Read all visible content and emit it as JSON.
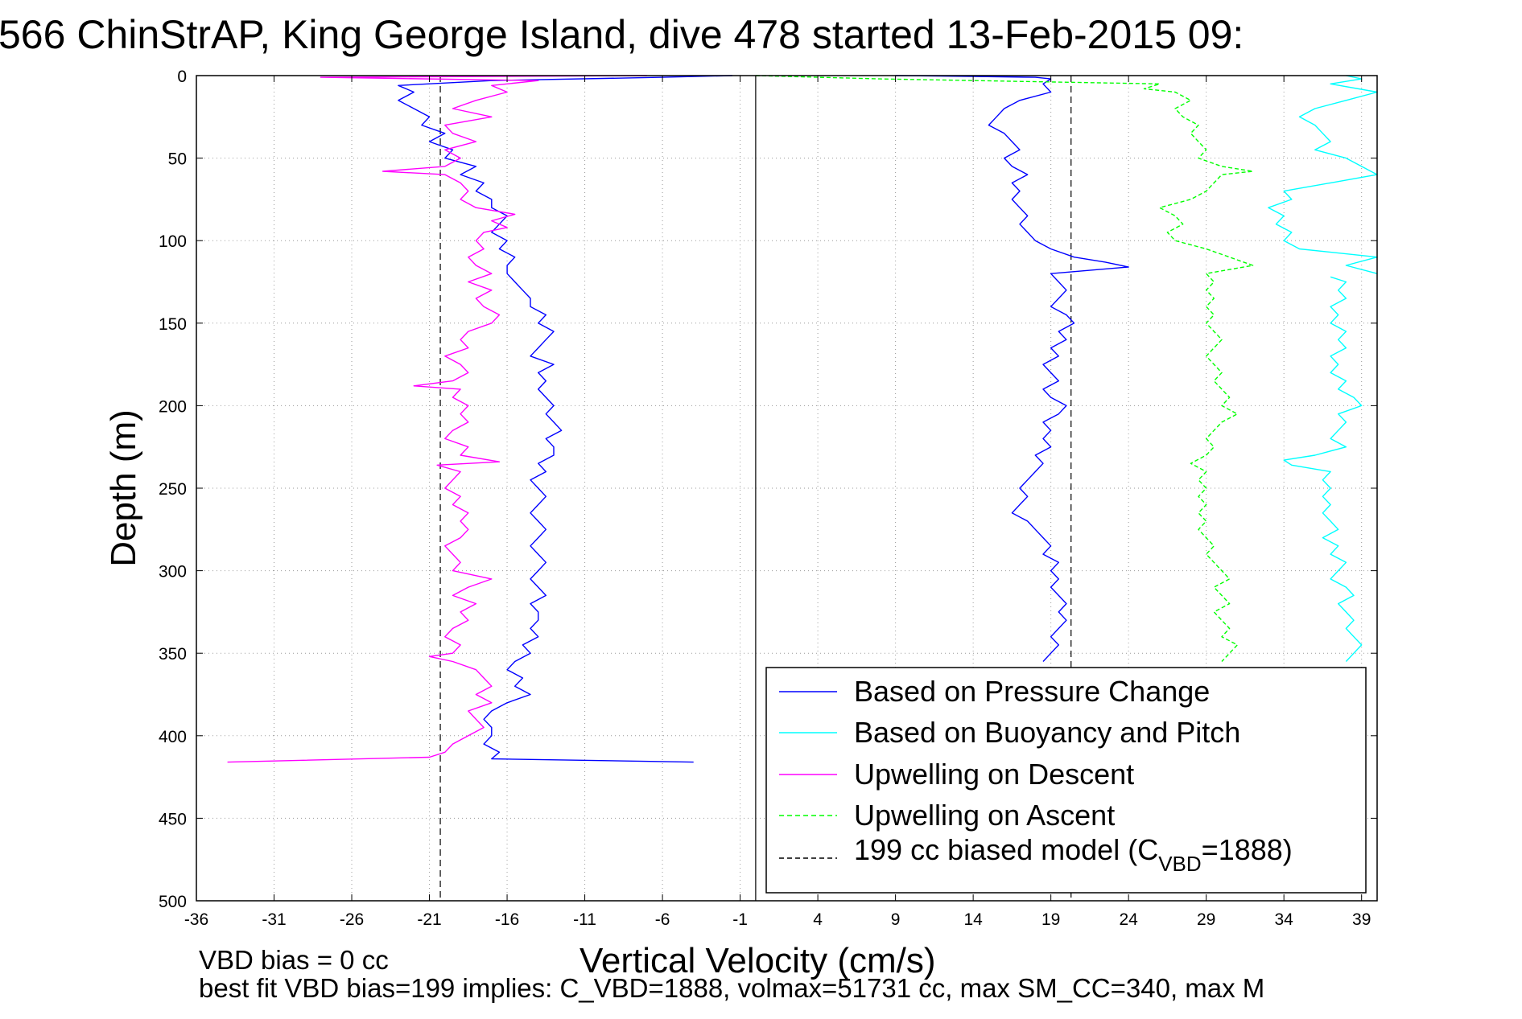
{
  "chart_data": {
    "type": "line",
    "title": "566 ChinStrAP, King George Island, dive 478 started 13-Feb-2015 09:",
    "xlabel": "Vertical Velocity (cm/s)",
    "ylabel": "Depth (m)",
    "xlim": [
      -36,
      40
    ],
    "ylim": [
      500,
      0
    ],
    "x_ticks": [
      "-36",
      "-31",
      "-26",
      "-21",
      "-16",
      "-11",
      "-6",
      "-1",
      "4",
      "9",
      "14",
      "19",
      "24",
      "29",
      "34",
      "39"
    ],
    "y_ticks": [
      "0",
      "50",
      "100",
      "150",
      "200",
      "250",
      "300",
      "350",
      "400",
      "450",
      "500"
    ],
    "grid": true,
    "legend_position": "bottom-right",
    "footer_lines": [
      "VBD bias = 0 cc",
      "best fit VBD bias=199 implies: C_VBD=1888, volmax=51731 cc, max SM_CC=340, max M"
    ],
    "vertical_lines": [
      {
        "x": -20.3,
        "style": "dashed",
        "color": "#000000"
      },
      {
        "x": 20.3,
        "style": "dashed",
        "color": "#000000"
      },
      {
        "x": 0,
        "style": "solid",
        "color": "#000000"
      }
    ],
    "series": [
      {
        "name": "Based on Pressure Change",
        "color": "#0000ff",
        "style": "solid",
        "segments": [
          {
            "depth": [
              0,
              1,
              3,
              6,
              10,
              15,
              20,
              25,
              30,
              35,
              40,
              45,
              50,
              55,
              60,
              65,
              70,
              75,
              80,
              85,
              90,
              95,
              100,
              105,
              110,
              115,
              120,
              125,
              130,
              135,
              140,
              145,
              150,
              155,
              160,
              165,
              170,
              175,
              180,
              185,
              190,
              195,
              200,
              205,
              210,
              215,
              220,
              225,
              230,
              235,
              240,
              245,
              250,
              255,
              260,
              265,
              270,
              275,
              280,
              285,
              290,
              295,
              300,
              305,
              310,
              315,
              320,
              325,
              330,
              335,
              340,
              345,
              350,
              355,
              360,
              365,
              370,
              375,
              380,
              385,
              390,
              395,
              400,
              405,
              410,
              414,
              416
            ],
            "velocity": [
              -1.5,
              -6,
              -17,
              -23,
              -22,
              -23,
              -22,
              -21,
              -21.5,
              -20,
              -21,
              -19.5,
              -20,
              -18,
              -19,
              -17.5,
              -18,
              -17,
              -17,
              -16,
              -16.5,
              -17,
              -16,
              -16.5,
              -15.5,
              -16,
              -16,
              -15.5,
              -15,
              -14.5,
              -14.5,
              -13.5,
              -14,
              -13,
              -13.5,
              -14,
              -14.5,
              -13,
              -14,
              -13.5,
              -14,
              -13.5,
              -13,
              -13.5,
              -13,
              -12.5,
              -13.5,
              -13,
              -13,
              -14,
              -13.5,
              -14.5,
              -14,
              -13.5,
              -14,
              -14.5,
              -14,
              -13.5,
              -14,
              -14.5,
              -14,
              -13.5,
              -14,
              -14.5,
              -14,
              -13.5,
              -14.5,
              -14,
              -14,
              -14.5,
              -14,
              -15,
              -14.5,
              -15.5,
              -16,
              -15,
              -15.5,
              -14.5,
              -16,
              -17,
              -17.5,
              -17,
              -17,
              -17.5,
              -16.5,
              -17,
              -4
            ]
          },
          {
            "depth": [
              0,
              0.5,
              1,
              2
            ],
            "velocity": [
              9,
              14,
              18,
              19
            ]
          },
          {
            "depth": [
              2,
              5,
              10,
              15,
              20,
              25,
              30,
              35,
              40,
              45,
              50,
              55,
              60,
              65,
              70,
              75,
              80,
              85,
              90,
              95,
              100,
              105,
              110,
              113,
              116,
              120,
              125,
              130,
              135,
              140,
              145,
              150,
              155,
              160,
              165,
              170,
              175,
              180,
              185,
              190,
              195,
              200,
              205,
              210,
              215,
              220,
              225,
              230,
              235,
              240,
              245,
              250,
              255,
              260,
              265,
              270,
              275,
              280,
              285,
              290,
              295,
              300,
              305,
              310,
              315,
              320,
              325,
              330,
              335,
              340,
              345,
              350,
              355
            ],
            "velocity": [
              19,
              18.5,
              19,
              17,
              16,
              15.5,
              15,
              16,
              16.5,
              17,
              16,
              16.5,
              17.5,
              16.5,
              17,
              16.5,
              17,
              17.5,
              17,
              17.5,
              18,
              19,
              20.5,
              22.5,
              24,
              19,
              19.5,
              20,
              19.5,
              19,
              20,
              20.5,
              19.5,
              20,
              19,
              19.5,
              18.5,
              19,
              19.5,
              18.5,
              19,
              20,
              19.5,
              18.5,
              19,
              18.5,
              19,
              18,
              18.5,
              18,
              17.5,
              17,
              17.5,
              17,
              16.5,
              17.5,
              18,
              18.5,
              19,
              18.5,
              19.5,
              19,
              19.5,
              19,
              19.5,
              20,
              19.5,
              20,
              19.5,
              19,
              19.5,
              19,
              18.5
            ]
          }
        ]
      },
      {
        "name": "Based on Buoyancy and Pitch",
        "color": "#00ffff",
        "style": "solid",
        "segments": [
          {
            "depth": [
              0,
              2,
              5,
              10,
              15,
              20,
              25,
              30,
              35,
              40,
              45,
              50,
              55,
              60,
              65,
              70,
              75,
              80,
              85,
              90,
              95,
              100,
              105,
              110,
              115,
              120
            ],
            "velocity": [
              38,
              39,
              37,
              40,
              38,
              36,
              35,
              36,
              36.5,
              37,
              36,
              38,
              39,
              40,
              37,
              34,
              34.5,
              33,
              34,
              33.5,
              34.5,
              34,
              35,
              40,
              38,
              40
            ]
          },
          {
            "depth": [
              122,
              125,
              130,
              135,
              140,
              145,
              150,
              155,
              160,
              165,
              170,
              175,
              180,
              185,
              190,
              195,
              200,
              205,
              210,
              215,
              220,
              225,
              230,
              233,
              236,
              240,
              245,
              250,
              255,
              260,
              265,
              270,
              275,
              280,
              285,
              290,
              295,
              300,
              305,
              310,
              315,
              320,
              325,
              330,
              335,
              340,
              345,
              350,
              355
            ],
            "velocity": [
              37,
              38,
              37.5,
              38,
              37,
              37.5,
              37,
              38,
              37.5,
              38,
              37,
              37.5,
              37,
              38,
              37.5,
              38.5,
              39,
              37.5,
              38,
              37.5,
              37,
              38,
              36,
              34,
              34.5,
              37,
              36.5,
              37,
              36.5,
              37,
              36.5,
              37,
              37.5,
              36.5,
              37.5,
              37,
              38,
              37.5,
              37,
              38,
              38.5,
              37.5,
              38,
              38.5,
              38,
              38.5,
              39,
              38.5,
              38
            ]
          }
        ]
      },
      {
        "name": "Upwelling on Descent",
        "color": "#ff00ff",
        "style": "solid",
        "segments": [
          {
            "depth": [
              0,
              1,
              3,
              6,
              10,
              15,
              20,
              25,
              30,
              35,
              40,
              45,
              50,
              55,
              58,
              60,
              65,
              70,
              75,
              80,
              84,
              88,
              92,
              95,
              100,
              105,
              110,
              115,
              120,
              125,
              130,
              135,
              140,
              145,
              150,
              155,
              160,
              165,
              170,
              175,
              180,
              185,
              188,
              190,
              195,
              200,
              205,
              210,
              215,
              220,
              225,
              230,
              234,
              236,
              240,
              245,
              250,
              255,
              260,
              265,
              270,
              275,
              280,
              285,
              290,
              295,
              300,
              305,
              310,
              315,
              320,
              325,
              330,
              335,
              340,
              345,
              350,
              352,
              355,
              360,
              365,
              370,
              375,
              380,
              385,
              390,
              395,
              400,
              405,
              410,
              413,
              416
            ],
            "velocity": [
              -7,
              -28,
              -14,
              -17,
              -16,
              -18,
              -19.5,
              -17,
              -20,
              -19.5,
              -18,
              -20,
              -19,
              -20,
              -24,
              -20,
              -19,
              -18.5,
              -19,
              -18,
              -15.5,
              -17,
              -16,
              -17.5,
              -18,
              -17.5,
              -18.5,
              -18,
              -17,
              -18.5,
              -17,
              -18,
              -17.5,
              -16.5,
              -17,
              -18.5,
              -19,
              -18.5,
              -20,
              -19,
              -18.5,
              -19.5,
              -22,
              -19,
              -19.5,
              -18.5,
              -19,
              -18.5,
              -19.5,
              -20,
              -18.5,
              -19,
              -16.5,
              -20.5,
              -19,
              -19.5,
              -20,
              -19,
              -19.5,
              -18.5,
              -19,
              -18.5,
              -19,
              -20,
              -19.5,
              -19,
              -19.5,
              -17,
              -18.5,
              -19.5,
              -18,
              -19,
              -18.5,
              -19.5,
              -20,
              -19,
              -19.5,
              -21,
              -19.5,
              -18,
              -17.5,
              -17,
              -18,
              -17,
              -18.5,
              -18,
              -17.5,
              -18.5,
              -19.5,
              -20,
              -21,
              -34
            ]
          }
        ]
      },
      {
        "name": "Upwelling on Ascent",
        "color": "#00ff00",
        "style": "dashed",
        "segments": [
          {
            "depth": [
              0,
              2,
              5,
              8,
              10,
              15,
              20,
              25,
              30,
              35,
              40,
              45,
              50,
              55,
              58,
              60,
              65,
              70,
              75,
              80,
              85,
              90,
              95,
              100,
              105,
              110,
              115,
              120,
              125,
              130,
              135,
              140,
              145,
              150,
              155,
              160,
              165,
              170,
              175,
              180,
              185,
              190,
              195,
              200,
              205,
              210,
              215,
              220,
              225,
              230,
              235,
              240,
              245,
              250,
              255,
              260,
              265,
              270,
              275,
              280,
              285,
              290,
              295,
              300,
              305,
              310,
              315,
              320,
              325,
              330,
              335,
              340,
              345,
              350,
              355
            ],
            "velocity": [
              0,
              8,
              26,
              25,
              27,
              28,
              27,
              27.5,
              28.5,
              28,
              28.5,
              29,
              28.5,
              30,
              32,
              30,
              29.5,
              29,
              28,
              26,
              27,
              27.5,
              26.5,
              27,
              29,
              30.5,
              32,
              29,
              29.5,
              29,
              29.5,
              29,
              29.5,
              29,
              29.5,
              30,
              29.5,
              29,
              29.5,
              30,
              29.5,
              30,
              30.5,
              30,
              31,
              30,
              29.5,
              29,
              29.5,
              29,
              28,
              29,
              28.5,
              29,
              28.5,
              29,
              28.5,
              29,
              28.5,
              29,
              29.5,
              29,
              29.5,
              30,
              30.5,
              29.5,
              30,
              30.5,
              29.5,
              30,
              30.5,
              30,
              31,
              30.5,
              30
            ]
          }
        ]
      },
      {
        "name": "199 cc biased model (C",
        "subscript": "VBD",
        "suffix": "=1888)",
        "color": "#000000",
        "style": "dashed",
        "segments": []
      }
    ]
  }
}
